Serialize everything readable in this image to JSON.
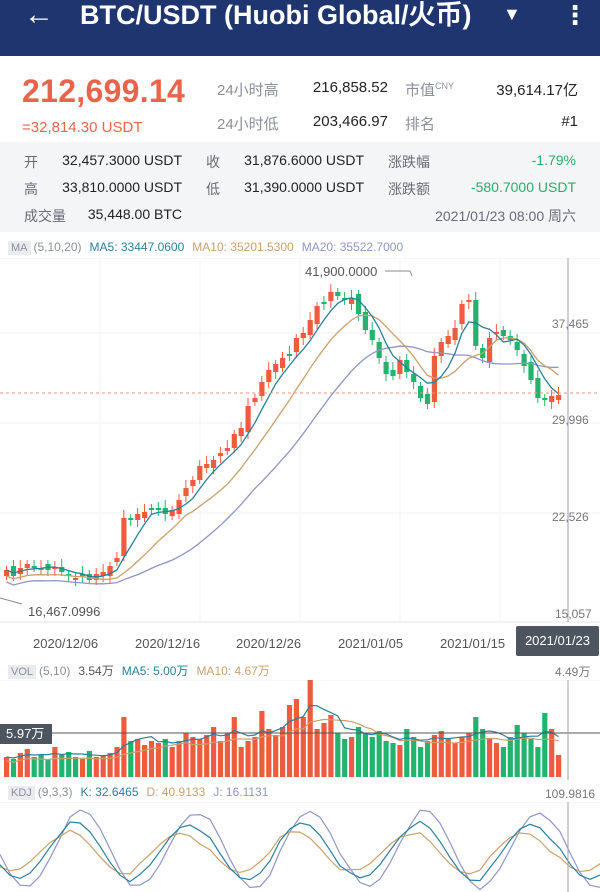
{
  "header": {
    "back_icon": "←",
    "title": "BTC/USDT (Huobi Global/火币)",
    "dropdown_icon": "▼",
    "more_icon": "⋮"
  },
  "ticker": {
    "price": "212,699.14",
    "converted": "=32,814.30 USDT",
    "high_label": "24小时高",
    "high_value": "216,858.52",
    "low_label": "24小时低",
    "low_value": "203,466.97",
    "mcap_label": "市值",
    "mcap_unit": "CNY",
    "mcap_value": "39,614.17亿",
    "rank_label": "排名",
    "rank_value": "#1"
  },
  "stats": {
    "open_label": "开",
    "open_value": "32,457.3000 USDT",
    "close_label": "收",
    "close_value": "31,876.6000 USDT",
    "change_pct_label": "涨跌幅",
    "change_pct_value": "-1.79%",
    "high_label": "高",
    "high_value": "33,810.0000 USDT",
    "low_label": "低",
    "low_value": "31,390.0000 USDT",
    "change_amt_label": "涨跌额",
    "change_amt_value": "-580.7000 USDT",
    "volume_label": "成交量",
    "volume_value": "35,448.00 BTC",
    "datetime": "2021/01/23 08:00 周六"
  },
  "main_chart": {
    "tag": "MA",
    "params": "(5,10,20)",
    "ma5": "MA5: 33447.0600",
    "ma10": "MA10: 35201.5300",
    "ma20": "MA20: 35522.7000",
    "y_ticks": [
      "37,465",
      "29,996",
      "22,526",
      "15,057"
    ],
    "max_label": "41,900.0000",
    "min_label": "16,467.0996",
    "x_dates": [
      "2020/12/06",
      "2020/12/16",
      "2020/12/26",
      "2021/01/05",
      "2021/01/15"
    ],
    "selected_date": "2021/01/23",
    "colors": {
      "up": "#ee5b3e",
      "down": "#22b46e",
      "ma5": "#2a7f9b",
      "ma10": "#c9a06b",
      "ma20": "#8f95c6"
    }
  },
  "vol_chart": {
    "tag": "VOL",
    "params": "(5,10)",
    "vol": "3.54万",
    "ma5": "MA5: 5.00万",
    "ma10": "MA10: 4.67万",
    "max_label": "4.49万",
    "cursor_label": "5.97万"
  },
  "kdj_chart": {
    "tag": "KDJ",
    "params": "(9,3,3)",
    "k": "K: 32.6465",
    "d": "D: 40.9133",
    "j": "J: 16.1131",
    "max_label": "109.9816"
  }
}
